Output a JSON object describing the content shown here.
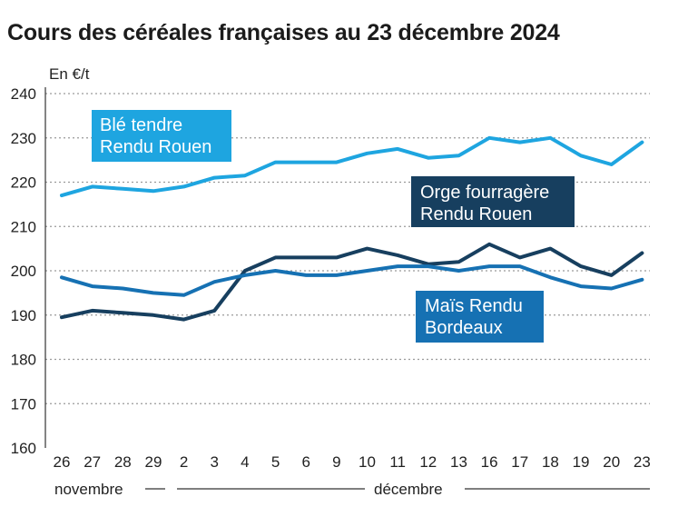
{
  "chart_data": {
    "type": "line",
    "title": "Cours des céréales françaises au 23 décembre 2024",
    "ylabel": "En €/t",
    "xlabel": "",
    "ylim": [
      160,
      240
    ],
    "yticks": [
      160,
      170,
      180,
      190,
      200,
      210,
      220,
      230,
      240
    ],
    "categories": [
      "26",
      "27",
      "28",
      "29",
      "2",
      "3",
      "4",
      "5",
      "6",
      "9",
      "10",
      "11",
      "12",
      "13",
      "16",
      "17",
      "18",
      "19",
      "20",
      "23"
    ],
    "months": [
      {
        "label": "novembre",
        "start": 0,
        "end": 3
      },
      {
        "label": "décembre",
        "start": 4,
        "end": 19
      }
    ],
    "series": [
      {
        "name": "Blé tendre Rendu Rouen",
        "label_lines": [
          "Blé tendre",
          "Rendu Rouen"
        ],
        "color": "#1ea5e0",
        "label_bg": "#1ea5e0",
        "values": [
          217,
          219,
          218.5,
          218,
          219,
          221,
          221.5,
          224.5,
          224.5,
          224.5,
          226.5,
          227.5,
          225.5,
          226,
          230,
          229,
          230,
          226,
          224,
          229
        ]
      },
      {
        "name": "Orge fourragère Rendu Rouen",
        "label_lines": [
          "Orge fourragère",
          "Rendu Rouen"
        ],
        "color": "#173f5f",
        "label_bg": "#173f5f",
        "values": [
          189.5,
          191,
          190.5,
          190,
          189,
          191,
          200,
          203,
          203,
          203,
          205,
          203.5,
          201.5,
          202,
          206,
          203,
          205,
          201,
          199,
          204
        ]
      },
      {
        "name": "Maïs Rendu Bordeaux",
        "label_lines": [
          "Maïs Rendu",
          "Bordeaux"
        ],
        "color": "#1671b3",
        "label_bg": "#1671b3",
        "values": [
          198.5,
          196.5,
          196,
          195,
          194.5,
          197.5,
          199,
          200,
          199,
          199,
          200,
          201,
          201,
          200,
          201,
          201,
          198.5,
          196.5,
          196,
          198
        ]
      }
    ]
  }
}
